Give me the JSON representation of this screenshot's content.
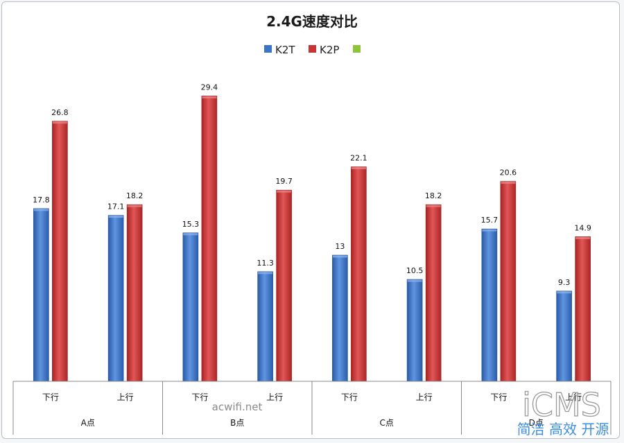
{
  "chart_data": {
    "type": "bar",
    "title": "2.4G速度对比",
    "categories": [
      {
        "group": "A点",
        "sub": "下行"
      },
      {
        "group": "A点",
        "sub": "上行"
      },
      {
        "group": "B点",
        "sub": "下行"
      },
      {
        "group": "B点",
        "sub": "上行"
      },
      {
        "group": "C点",
        "sub": "下行"
      },
      {
        "group": "C点",
        "sub": "上行"
      },
      {
        "group": "D点",
        "sub": "下行"
      },
      {
        "group": "D点",
        "sub": "上行"
      }
    ],
    "groups": [
      "A点",
      "B点",
      "C点",
      "D点"
    ],
    "series": [
      {
        "name": "K2T",
        "color": "#3c74c6",
        "values": [
          17.8,
          17.1,
          15.3,
          11.3,
          13,
          10.5,
          15.7,
          9.3
        ]
      },
      {
        "name": "K2P",
        "color": "#c93434",
        "values": [
          26.8,
          18.2,
          29.4,
          19.7,
          22.1,
          18.2,
          20.6,
          14.9
        ]
      }
    ],
    "legend": [
      {
        "name": "K2T",
        "color": "#3c74c6"
      },
      {
        "name": "K2P",
        "color": "#c93434"
      },
      {
        "name": "",
        "color": "#8fc43a"
      }
    ],
    "legend_position": "top",
    "ylim": [
      0,
      35
    ],
    "grid": false,
    "data_labels": true
  },
  "watermarks": {
    "site": "acwifi.net",
    "brand": "iCMS",
    "slogan": "简洁 高效 开源"
  }
}
